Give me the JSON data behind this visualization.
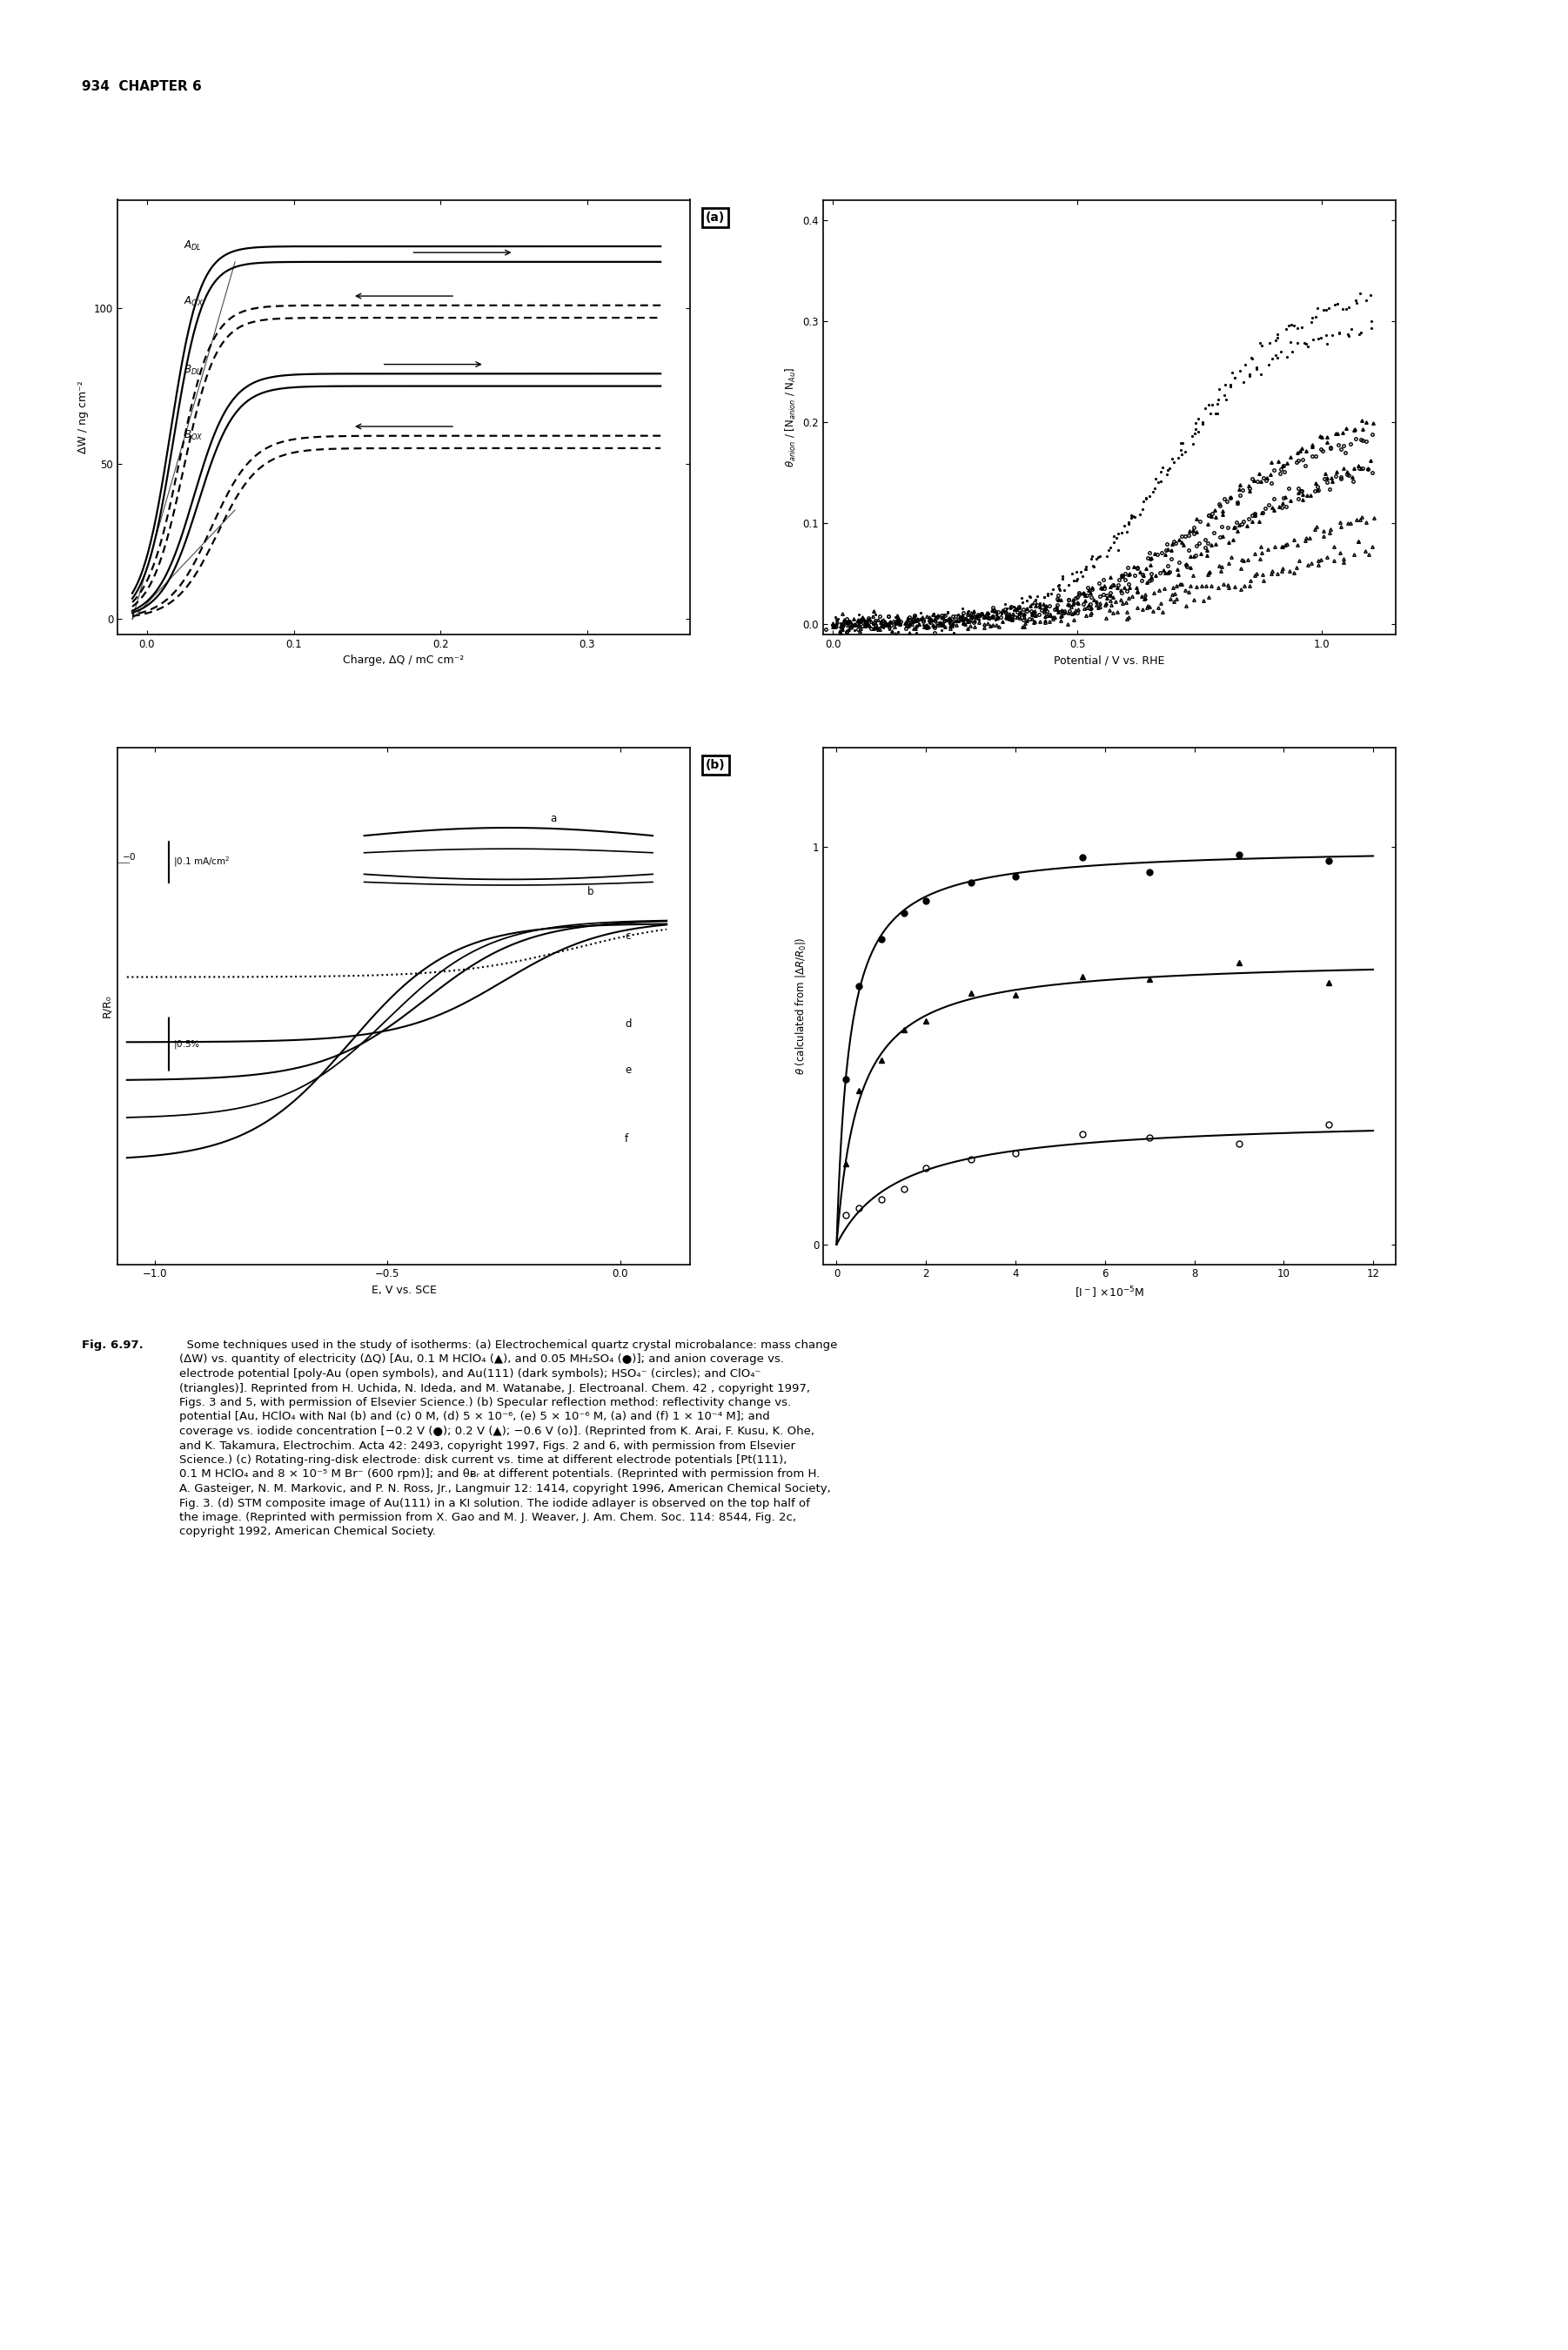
{
  "page_header": "934  CHAPTER 6",
  "background_color": "#ffffff",
  "text_color": "#000000",
  "caption_bold": "Fig. 6.97.",
  "caption_normal": "  Some techniques used in the study of isotherms: (a) Electrochemical quartz crystal microbalance: mass change (ΔW) vs. quantity of electricity (ΔQ) [Au, 0.1 M HClO₄ (▲), and 0.05 MH₂SO₄ (●)]; and anion coverage vs. electrode potential [poly-Au (open symbols), and Au(111) (dark symbols); HSO₄⁻ (circles); and ClO₄⁻ (triangles)]. Reprinted from H. Uchida, N. Ideda, and M. Watanabe, J. Electroanal. Chem. 42 , copyright 1997, Figs. 3 and 5, with permission of Elsevier Science.) (b) Specular reflection method: reflectivity change vs. potential [Au, HClO₄ with NaI (b) and (c) 0 M, (d) 5 × 10⁻⁶, (e) 5 × 10⁻⁶ M, (a) and (f) 1 × 10⁻⁴ M]; and coverage vs. iodide concentration [−0.2 V (●); 0.2 V (▲); −0.6 V (o)]. (Reprinted from K. Arai, F. Kusu, K. Ohe, and K. Takamura, Electrochim. Acta 42: 2493, copyright 1997, Figs. 2 and 6, with permission from Elsevier Science.) (c) Rotating-ring-disk electrode: disk current vs. time at different electrode potentials [Pt(111), 0.1 M HClO₄ and 8 × 10⁻⁵ M Br⁻ (600 rpm)]; and θᴃᵣ at different potentials. (Reprinted with permission from H. A. Gasteiger, N. M. Markovic, and P. N. Ross, Jr., Langmuir 12: 1414, copyright 1996, American Chemical Society, Fig. 3. (d) STM composite image of Au(111) in a KI solution. The iodide adlayer is observed on the top half of the image. (Reprinted with permission from X. Gao and M. J. Weaver, J. Am. Chem. Soc. 114: 8544, Fig. 2c, copyright 1992, American Chemical Society.",
  "panel_a_left": {
    "xlabel": "Charge, ΔQ / mC cm⁻²",
    "ylabel": "ΔW / ng cm⁻²",
    "xlim": [
      -0.02,
      0.37
    ],
    "ylim": [
      -5,
      135
    ],
    "xticks": [
      0,
      0.1,
      0.2,
      0.3
    ],
    "yticks": [
      0,
      50,
      100
    ]
  },
  "panel_a_right": {
    "xlabel": "Potential / V vs. RHE",
    "ylabel": "θ_anion / [N_anion / N_Au]",
    "xlim": [
      -0.02,
      1.15
    ],
    "ylim": [
      -0.01,
      0.42
    ],
    "xticks": [
      0,
      0.5,
      1.0
    ],
    "yticks": [
      0,
      0.1,
      0.2,
      0.3,
      0.4
    ]
  },
  "panel_b_left": {
    "xlabel": "E, V vs. SCE",
    "ylabel": "R/R₀",
    "xlim": [
      -1.08,
      0.15
    ],
    "ylim": [
      -1.05,
      0.3
    ],
    "xticks": [
      -1.0,
      -0.5,
      0
    ]
  },
  "panel_b_right": {
    "xlabel": "[I⁻] ×10⁻⁵M",
    "ylabel": "θ (calculated from |ΔR/R₀|)",
    "xlim": [
      -0.3,
      12.5
    ],
    "ylim": [
      -0.05,
      1.25
    ],
    "xticks": [
      0,
      2,
      4,
      6,
      8,
      10,
      12
    ],
    "yticks": [
      0,
      1
    ]
  }
}
